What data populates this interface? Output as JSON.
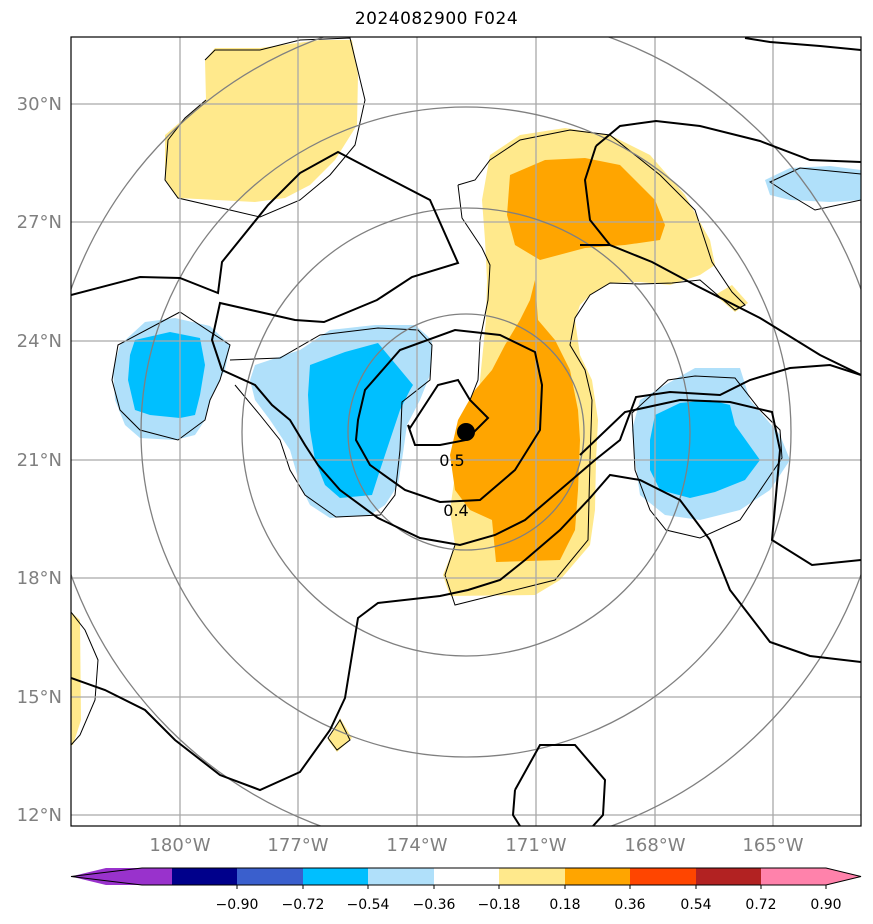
{
  "title": "2024082900 F024",
  "colors": {
    "light_yellow": "#ffe98c",
    "orange": "#ffa500",
    "light_blue": "#b0e0fa",
    "blue": "#00bfff",
    "grid": "#a9a9a9",
    "range_ring": "#808080",
    "contour": "#000000"
  },
  "lat_labels": [
    "30°N",
    "27°N",
    "24°N",
    "21°N",
    "18°N",
    "15°N",
    "12°N"
  ],
  "lon_labels": [
    "180°W",
    "177°W",
    "174°W",
    "171°W",
    "168°W",
    "165°W"
  ],
  "contour_labels": [
    "0.5",
    "0.4"
  ],
  "colorbar": {
    "colors": [
      "#9932cc",
      "#00008b",
      "#3a5fcd",
      "#00bfff",
      "#b0e0fa",
      "#ffffff",
      "#ffe98c",
      "#ffa500",
      "#ff4500",
      "#b22222",
      "#ff82ab"
    ],
    "labels": [
      "−0.90",
      "−0.72",
      "−0.54",
      "−0.36",
      "−0.18",
      "0.18",
      "0.36",
      "0.54",
      "0.72",
      "0.90"
    ]
  },
  "storm_center_marker": "filled-black-dot"
}
